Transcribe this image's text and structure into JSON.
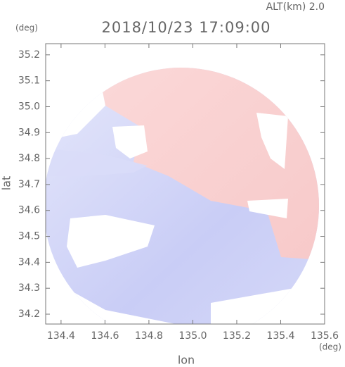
{
  "chart_data": {
    "type": "radar-map",
    "annotation": "ALT(km) 2.0",
    "title": "2018/10/23 17:09:00",
    "y_unit": "(deg)",
    "x_unit": "(deg)",
    "ylabel": "lat",
    "xlabel": "lon",
    "xlim": [
      134.33,
      135.6
    ],
    "ylim": [
      34.162,
      35.243
    ],
    "xticks": [
      134.4,
      134.6,
      134.8,
      {
        "value": 135.0,
        "label": "135.0"
      },
      135.2,
      135.4,
      135.6
    ],
    "yticks": [
      34.2,
      34.3,
      34.4,
      34.5,
      34.6,
      34.7,
      34.8,
      34.9,
      {
        "value": 35.0,
        "label": "35.0"
      },
      35.1,
      35.2
    ]
  }
}
